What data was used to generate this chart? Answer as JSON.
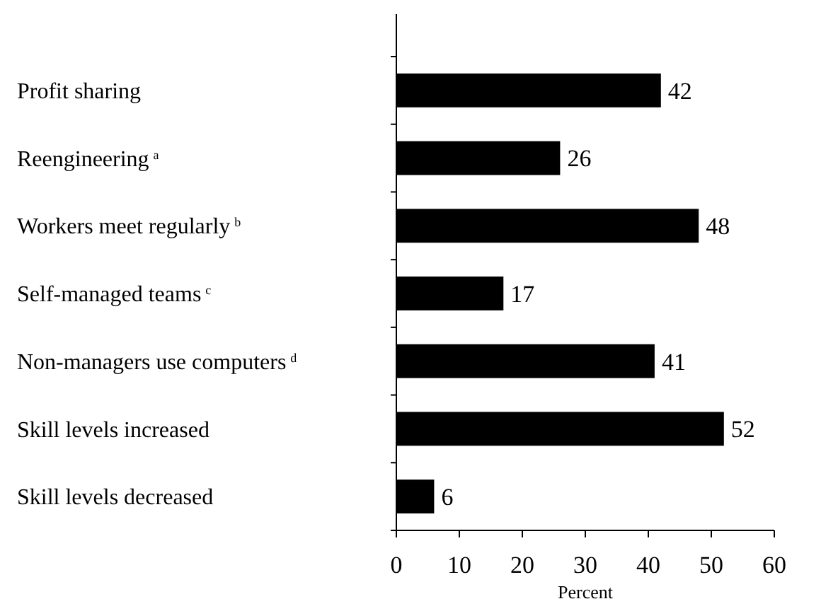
{
  "chart_data": {
    "type": "bar",
    "orientation": "horizontal",
    "xlabel": "Percent",
    "categories": [
      "Profit sharing",
      "Reengineering$^{a}$",
      "Workers meet regularly$^{b}$",
      "Self-managed teams$^{c}$",
      "Non-managers use computers$^{d}$",
      "Skill levels increased",
      "Skill levels decreased"
    ],
    "values": [
      42,
      26,
      48,
      17,
      41,
      52,
      6
    ],
    "color": "#000000",
    "xlim": [
      0,
      60
    ],
    "xticks": [
      0,
      10,
      20,
      30,
      40,
      50,
      60
    ],
    "data_labels": true
  }
}
